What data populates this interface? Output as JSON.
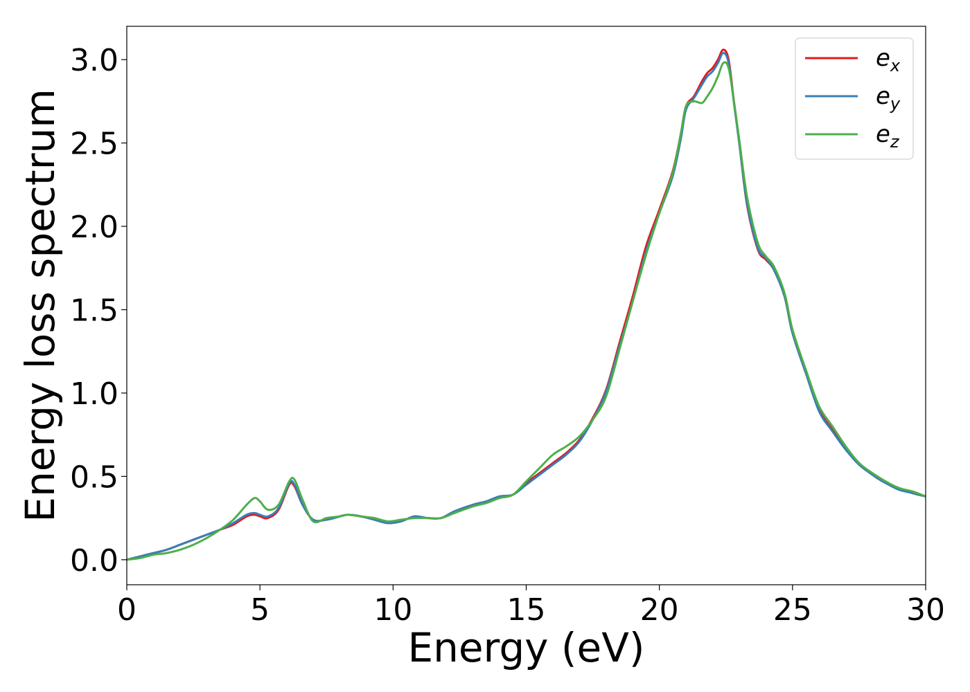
{
  "chart_data": {
    "type": "line",
    "title": "",
    "xlabel": "Energy (eV)",
    "ylabel": "Energy loss spectrum",
    "xlim": [
      0,
      30
    ],
    "ylim": [
      -0.15,
      3.2
    ],
    "xticks": [
      0,
      5,
      10,
      15,
      20,
      25,
      30
    ],
    "xtick_labels": [
      "0",
      "5",
      "10",
      "15",
      "20",
      "25",
      "30"
    ],
    "yticks": [
      0.0,
      0.5,
      1.0,
      1.5,
      2.0,
      2.5,
      3.0
    ],
    "ytick_labels": [
      "0.0",
      "0.5",
      "1.0",
      "1.5",
      "2.0",
      "2.5",
      "3.0"
    ],
    "grid": false,
    "legend_position": "top-right",
    "series": [
      {
        "name": "e_x",
        "legend_main": "e",
        "legend_sub": "x",
        "color": "#e41a1c",
        "x": [
          0,
          0.5,
          1,
          1.5,
          2,
          2.5,
          3,
          3.5,
          4,
          4.5,
          4.8,
          5,
          5.3,
          5.7,
          6.1,
          6.3,
          6.6,
          7,
          7.5,
          8,
          8.3,
          8.8,
          9.3,
          9.8,
          10.3,
          10.8,
          11.3,
          11.8,
          12.3,
          13,
          13.5,
          14,
          14.5,
          15,
          15.5,
          16,
          16.5,
          17,
          17.5,
          18,
          18.5,
          19,
          19.5,
          20,
          20.5,
          20.8,
          21,
          21.3,
          21.6,
          21.8,
          22,
          22.2,
          22.4,
          22.6,
          22.8,
          23,
          23.3,
          23.7,
          24,
          24.3,
          24.7,
          25,
          25.5,
          26,
          26.5,
          27,
          27.5,
          28,
          28.5,
          29,
          29.5,
          30
        ],
        "y": [
          0.0,
          0.02,
          0.04,
          0.06,
          0.09,
          0.12,
          0.15,
          0.18,
          0.21,
          0.26,
          0.27,
          0.26,
          0.25,
          0.3,
          0.45,
          0.44,
          0.33,
          0.24,
          0.24,
          0.26,
          0.27,
          0.26,
          0.24,
          0.22,
          0.23,
          0.26,
          0.25,
          0.25,
          0.29,
          0.33,
          0.35,
          0.38,
          0.39,
          0.46,
          0.52,
          0.58,
          0.64,
          0.72,
          0.85,
          1.02,
          1.3,
          1.58,
          1.88,
          2.1,
          2.33,
          2.55,
          2.72,
          2.78,
          2.87,
          2.92,
          2.95,
          3.0,
          3.06,
          3.0,
          2.75,
          2.5,
          2.12,
          1.86,
          1.8,
          1.74,
          1.58,
          1.36,
          1.12,
          0.9,
          0.78,
          0.67,
          0.58,
          0.51,
          0.46,
          0.43,
          0.4,
          0.38
        ]
      },
      {
        "name": "e_y",
        "legend_main": "e",
        "legend_sub": "y",
        "color": "#377eb8",
        "x": [
          0,
          0.5,
          1,
          1.5,
          2,
          2.5,
          3,
          3.5,
          4,
          4.5,
          4.8,
          5,
          5.3,
          5.7,
          6.1,
          6.3,
          6.6,
          7,
          7.5,
          8,
          8.3,
          8.8,
          9.3,
          9.8,
          10.3,
          10.8,
          11.3,
          11.8,
          12.3,
          13,
          13.5,
          14,
          14.5,
          15,
          15.5,
          16,
          16.5,
          17,
          17.5,
          18,
          18.5,
          19,
          19.5,
          20,
          20.5,
          20.8,
          21,
          21.3,
          21.6,
          21.8,
          22,
          22.2,
          22.4,
          22.6,
          22.8,
          23,
          23.3,
          23.7,
          24,
          24.3,
          24.7,
          25,
          25.5,
          26,
          26.5,
          27,
          27.5,
          28,
          28.5,
          29,
          29.5,
          30
        ],
        "y": [
          0.0,
          0.02,
          0.04,
          0.06,
          0.09,
          0.12,
          0.15,
          0.18,
          0.22,
          0.27,
          0.28,
          0.27,
          0.26,
          0.31,
          0.46,
          0.45,
          0.33,
          0.24,
          0.24,
          0.26,
          0.27,
          0.26,
          0.24,
          0.22,
          0.23,
          0.26,
          0.25,
          0.25,
          0.29,
          0.33,
          0.35,
          0.38,
          0.39,
          0.45,
          0.51,
          0.57,
          0.63,
          0.71,
          0.84,
          1.01,
          1.28,
          1.55,
          1.85,
          2.08,
          2.3,
          2.52,
          2.7,
          2.77,
          2.85,
          2.9,
          2.93,
          2.98,
          3.04,
          2.98,
          2.74,
          2.5,
          2.13,
          1.87,
          1.81,
          1.74,
          1.58,
          1.36,
          1.12,
          0.89,
          0.77,
          0.66,
          0.57,
          0.51,
          0.46,
          0.42,
          0.4,
          0.38
        ]
      },
      {
        "name": "e_z",
        "legend_main": "e",
        "legend_sub": "z",
        "color": "#4daf4a",
        "x": [
          0,
          0.5,
          1,
          1.5,
          2,
          2.5,
          3,
          3.5,
          4,
          4.5,
          4.8,
          5,
          5.3,
          5.7,
          6.1,
          6.3,
          6.6,
          7,
          7.5,
          8,
          8.3,
          8.8,
          9.3,
          9.8,
          10.3,
          10.8,
          11.3,
          11.8,
          12.3,
          13,
          13.5,
          14,
          14.5,
          15,
          15.5,
          16,
          16.5,
          17,
          17.5,
          18,
          18.5,
          19,
          19.5,
          20,
          20.5,
          20.8,
          21,
          21.3,
          21.6,
          21.8,
          22,
          22.2,
          22.4,
          22.6,
          22.8,
          23,
          23.3,
          23.7,
          24,
          24.3,
          24.7,
          25,
          25.5,
          26,
          26.5,
          27,
          27.5,
          28,
          28.5,
          29,
          29.5,
          30
        ],
        "y": [
          0.0,
          0.01,
          0.03,
          0.04,
          0.06,
          0.09,
          0.13,
          0.18,
          0.24,
          0.33,
          0.37,
          0.35,
          0.3,
          0.33,
          0.47,
          0.48,
          0.36,
          0.23,
          0.25,
          0.26,
          0.27,
          0.26,
          0.25,
          0.23,
          0.24,
          0.25,
          0.25,
          0.25,
          0.28,
          0.32,
          0.34,
          0.37,
          0.39,
          0.47,
          0.55,
          0.63,
          0.68,
          0.74,
          0.84,
          0.98,
          1.26,
          1.55,
          1.83,
          2.08,
          2.32,
          2.55,
          2.72,
          2.75,
          2.74,
          2.78,
          2.83,
          2.9,
          2.98,
          2.95,
          2.75,
          2.52,
          2.17,
          1.9,
          1.82,
          1.76,
          1.6,
          1.38,
          1.14,
          0.92,
          0.8,
          0.68,
          0.58,
          0.52,
          0.47,
          0.43,
          0.41,
          0.38
        ]
      }
    ]
  }
}
